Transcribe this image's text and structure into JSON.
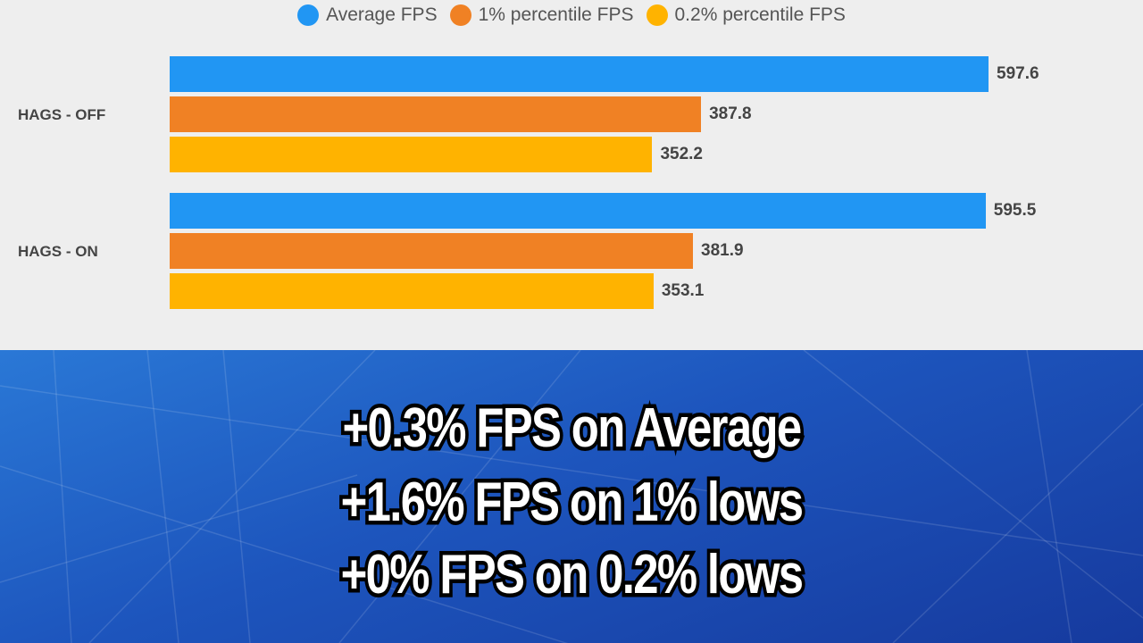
{
  "chart_data": {
    "type": "bar",
    "orientation": "horizontal",
    "categories": [
      "HAGS - OFF",
      "HAGS - ON"
    ],
    "series": [
      {
        "name": "Average FPS",
        "color": "#2196f3",
        "values": [
          597.6,
          595.5
        ]
      },
      {
        "name": "1% percentile FPS",
        "color": "#f08124",
        "values": [
          387.8,
          381.9
        ]
      },
      {
        "name": "0.2% percentile FPS",
        "color": "#ffb300",
        "values": [
          352.2,
          353.1
        ]
      }
    ],
    "legend_position": "top",
    "grid": false,
    "data_labels": true
  },
  "captions": [
    "+0.3% FPS on Average",
    "+1.6% FPS on 1% lows",
    "+0% FPS on 0.2% lows"
  ]
}
